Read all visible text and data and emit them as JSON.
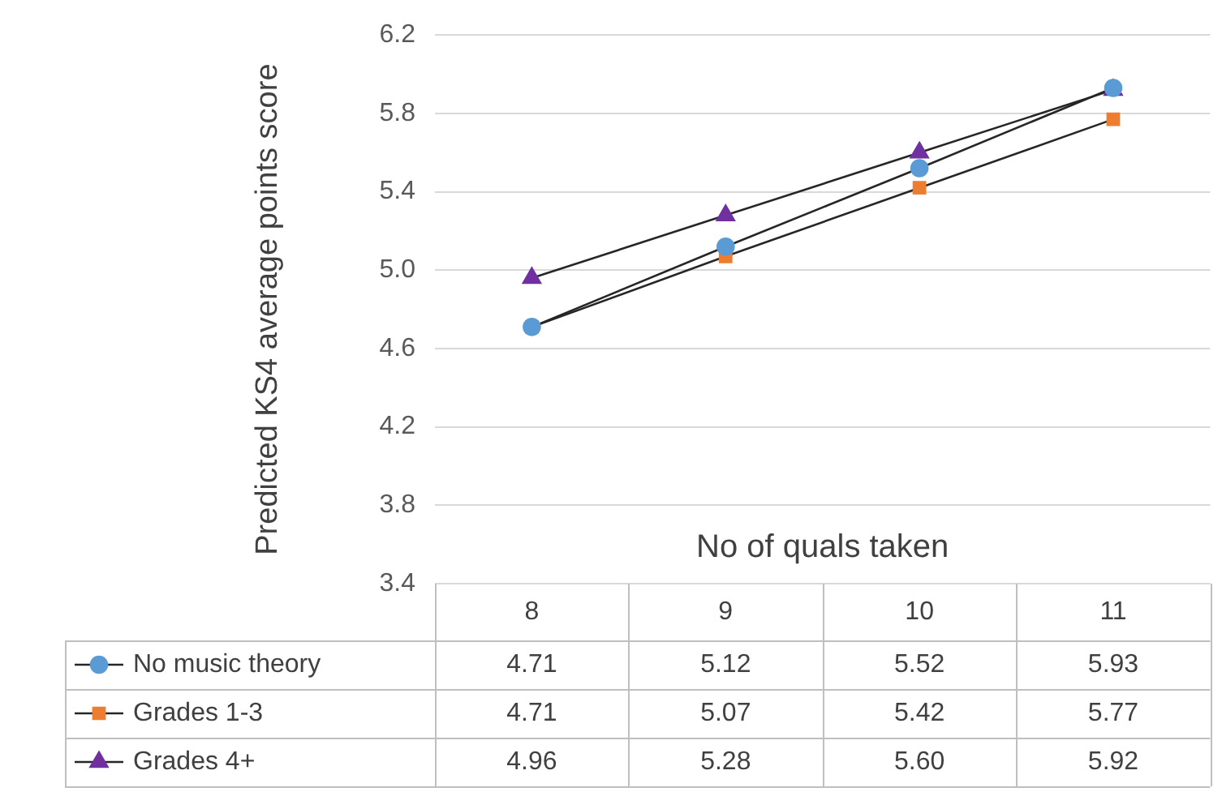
{
  "chart_data": {
    "type": "line",
    "xlabel": "No of quals taken",
    "ylabel": "Predicted KS4 average points score",
    "categories": [
      "8",
      "9",
      "10",
      "11"
    ],
    "series": [
      {
        "name": "No music theory",
        "color": "#5b9bd5",
        "marker": "circle",
        "values": [
          4.71,
          5.12,
          5.52,
          5.93
        ],
        "value_labels": [
          "4.71",
          "5.12",
          "5.52",
          "5.93"
        ]
      },
      {
        "name": "Grades 1-3",
        "color": "#ed7d31",
        "marker": "square",
        "values": [
          4.71,
          5.07,
          5.42,
          5.77
        ],
        "value_labels": [
          "4.71",
          "5.07",
          "5.42",
          "5.77"
        ]
      },
      {
        "name": "Grades 4+",
        "color": "#7030a0",
        "marker": "triangle",
        "values": [
          4.96,
          5.28,
          5.6,
          5.92
        ],
        "value_labels": [
          "4.96",
          "5.28",
          "5.60",
          "5.92"
        ]
      }
    ],
    "ylim": [
      3.4,
      6.2
    ],
    "yticks": [
      {
        "value": 3.4,
        "label": "3.4"
      },
      {
        "value": 3.8,
        "label": "3.8"
      },
      {
        "value": 4.2,
        "label": "4.2"
      },
      {
        "value": 4.6,
        "label": "4.6"
      },
      {
        "value": 5.0,
        "label": "5.0"
      },
      {
        "value": 5.4,
        "label": "5.4"
      },
      {
        "value": 5.8,
        "label": "5.8"
      },
      {
        "value": 6.2,
        "label": "6.2"
      }
    ],
    "grid": "y",
    "legend": "bottom"
  }
}
